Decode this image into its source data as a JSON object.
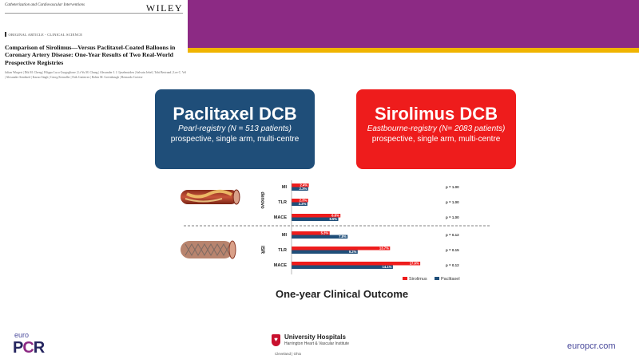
{
  "paper": {
    "journal": "Catheterization and Cardiovascular Interventions",
    "publisher": "WILEY",
    "article_type": "ORIGINAL ARTICLE - CLINICAL SCIENCE",
    "title": "Comparison of Sirolimus—Versus Paclitaxel-Coated Balloons in Coronary Artery Disease: One-Year Results of Two Real-World Prospective Registries",
    "authors": "Julian Wiegert | Dik M. Cheng | Filippo Luca Gurgoglione | Li-Yu M. Chang | Alexander J. J. Ijsselmuiden | Salvain Jebel | Tobi Bertrand | Lee C. Vel | Alexandre Sendsted | Kazuo Singh | Georg Kernaller | Erik Gutierrez | Robin M. Greenhough | Bernardo Cortese"
  },
  "boxes": {
    "paclitaxel": {
      "title": "Paclitaxel DCB",
      "registry": "Pearl-registry (N = 513 patients)",
      "design": "prospective, single arm, multi-centre",
      "color": "#1f4e79"
    },
    "sirolimus": {
      "title": "Sirolimus DCB",
      "registry": "Eastbourne-registry (N= 2083 patients)",
      "design": "prospective, single arm, multi-centre",
      "color": "#ee1c1c"
    }
  },
  "chart_data": {
    "type": "bar",
    "orientation": "horizontal",
    "xlim": [
      0,
      20
    ],
    "series": [
      {
        "name": "Sirolimus",
        "color": "#ee1c1c"
      },
      {
        "name": "Paclitaxel",
        "color": "#1f4e79"
      }
    ],
    "groups": [
      {
        "label": "denovo",
        "rows": [
          {
            "category": "MI",
            "values": [
              2.4,
              2.3
            ],
            "labels": [
              "2.4%",
              "2.3%"
            ],
            "p": "p = 1.00"
          },
          {
            "category": "TLR",
            "values": [
              2.3,
              2.2
            ],
            "labels": [
              "2.3%",
              "2.2%"
            ],
            "p": "p = 1.00"
          },
          {
            "category": "MACE",
            "values": [
              6.8,
              6.5
            ],
            "labels": [
              "6.8%",
              "6.5%"
            ],
            "p": "p = 1.00"
          }
        ]
      },
      {
        "label": "ISR",
        "rows": [
          {
            "category": "MI",
            "values": [
              5.3,
              7.8
            ],
            "labels": [
              "5.3%",
              "7.8%"
            ],
            "p": "p = 0.12"
          },
          {
            "category": "TLR",
            "values": [
              13.7,
              9.2
            ],
            "labels": [
              "13.7%",
              "9.2%"
            ],
            "p": "p = 0.15"
          },
          {
            "category": "MACE",
            "values": [
              17.9,
              14.1
            ],
            "labels": [
              "17.9%",
              "14.1%"
            ],
            "p": "p = 0.12"
          }
        ]
      }
    ]
  },
  "heading": "One-year Clinical Outcome",
  "footer": {
    "brand_prefix": "euro",
    "brand_p": "P",
    "brand_c": "C",
    "brand_r": "R",
    "hospital_name": "University Hospitals",
    "hospital_institute": "Harrington Heart & Vascular Institute",
    "hospital_city": "Cleveland | Ohio",
    "website": "europcr.com"
  }
}
